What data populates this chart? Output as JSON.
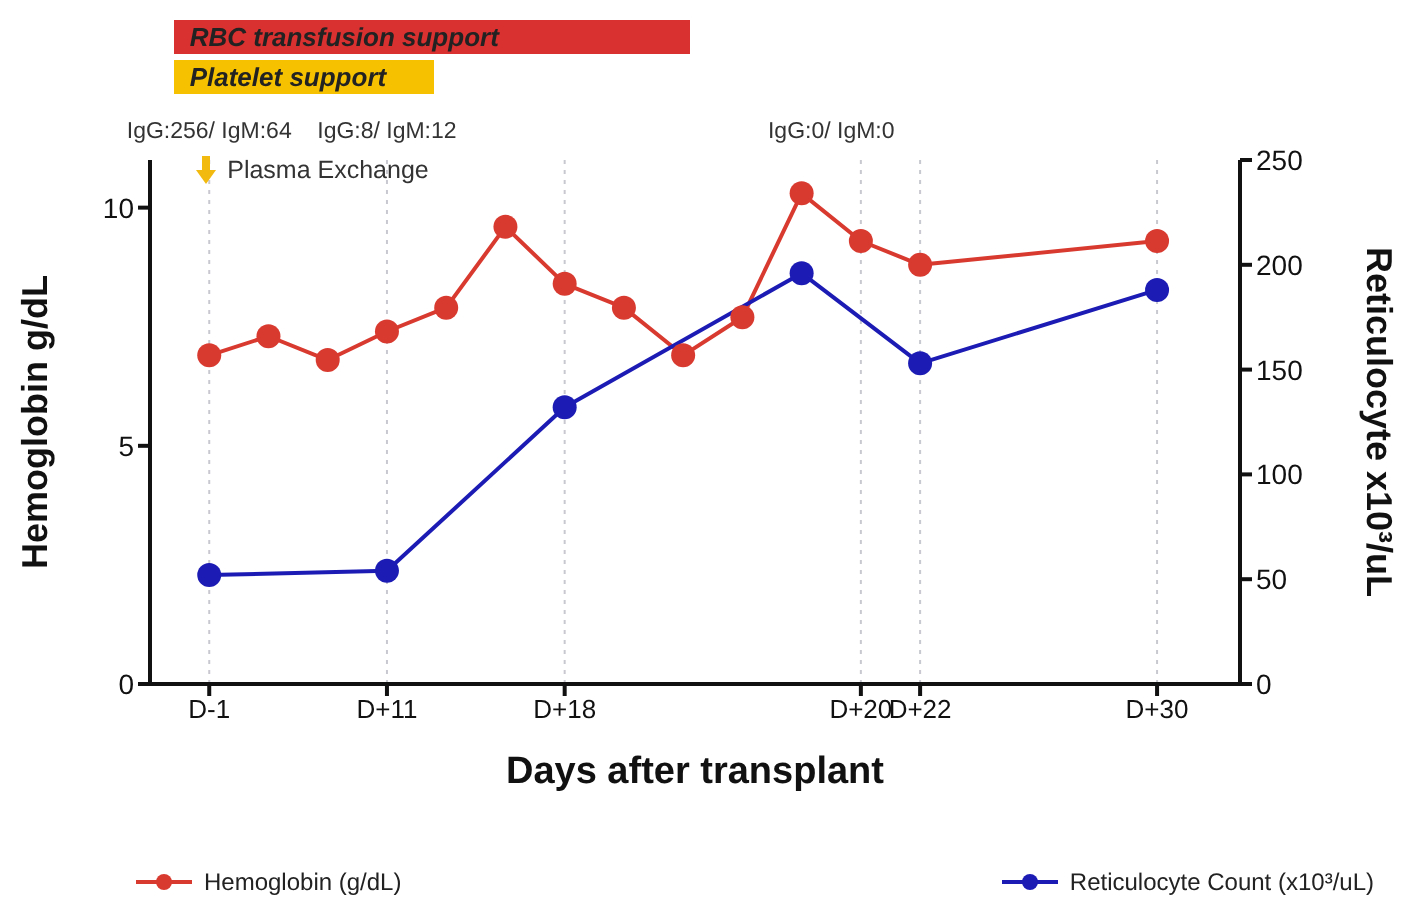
{
  "chart_data": {
    "type": "line",
    "xlabel": "Days after transplant",
    "ylabel": "Hemoglobin g/dL",
    "y2label": "Reticulocyte x10³/uL",
    "categories": [
      "D-1",
      null,
      null,
      "D+11",
      null,
      null,
      "D+18",
      null,
      null,
      null,
      null,
      "D+20",
      "D+22",
      null,
      null,
      null,
      "D+30"
    ],
    "ylim": [
      0,
      11
    ],
    "yticks": [
      0,
      5,
      10
    ],
    "y2lim": [
      0,
      250
    ],
    "y2ticks": [
      0,
      50,
      100,
      150,
      200,
      250
    ],
    "grid": "x",
    "legend": "bottom",
    "marker": "circle",
    "line_style": "solid",
    "series": [
      {
        "name": "Hemoglobin (g/dL)",
        "color": "#d93a30",
        "values": [
          6.9,
          7.3,
          6.8,
          7.4,
          7.9,
          9.6,
          8.4,
          7.9,
          6.9,
          7.7,
          10.3,
          9.3,
          8.8,
          null,
          null,
          null,
          9.3
        ]
      },
      {
        "name": "Reticulocyte Count (x10³/uL)",
        "color": "#1c1cb5",
        "axis": "y2",
        "values": [
          52,
          null,
          null,
          54,
          null,
          null,
          132,
          null,
          null,
          null,
          196,
          null,
          153,
          null,
          null,
          null,
          188
        ]
      }
    ],
    "annotations": [
      "RBC transfusion support",
      "Platelet support",
      "IgG:256/ IgM:64",
      "IgG:8/ IgM:12",
      "IgG:0/ IgM:0",
      "Plasma Exchange"
    ]
  }
}
